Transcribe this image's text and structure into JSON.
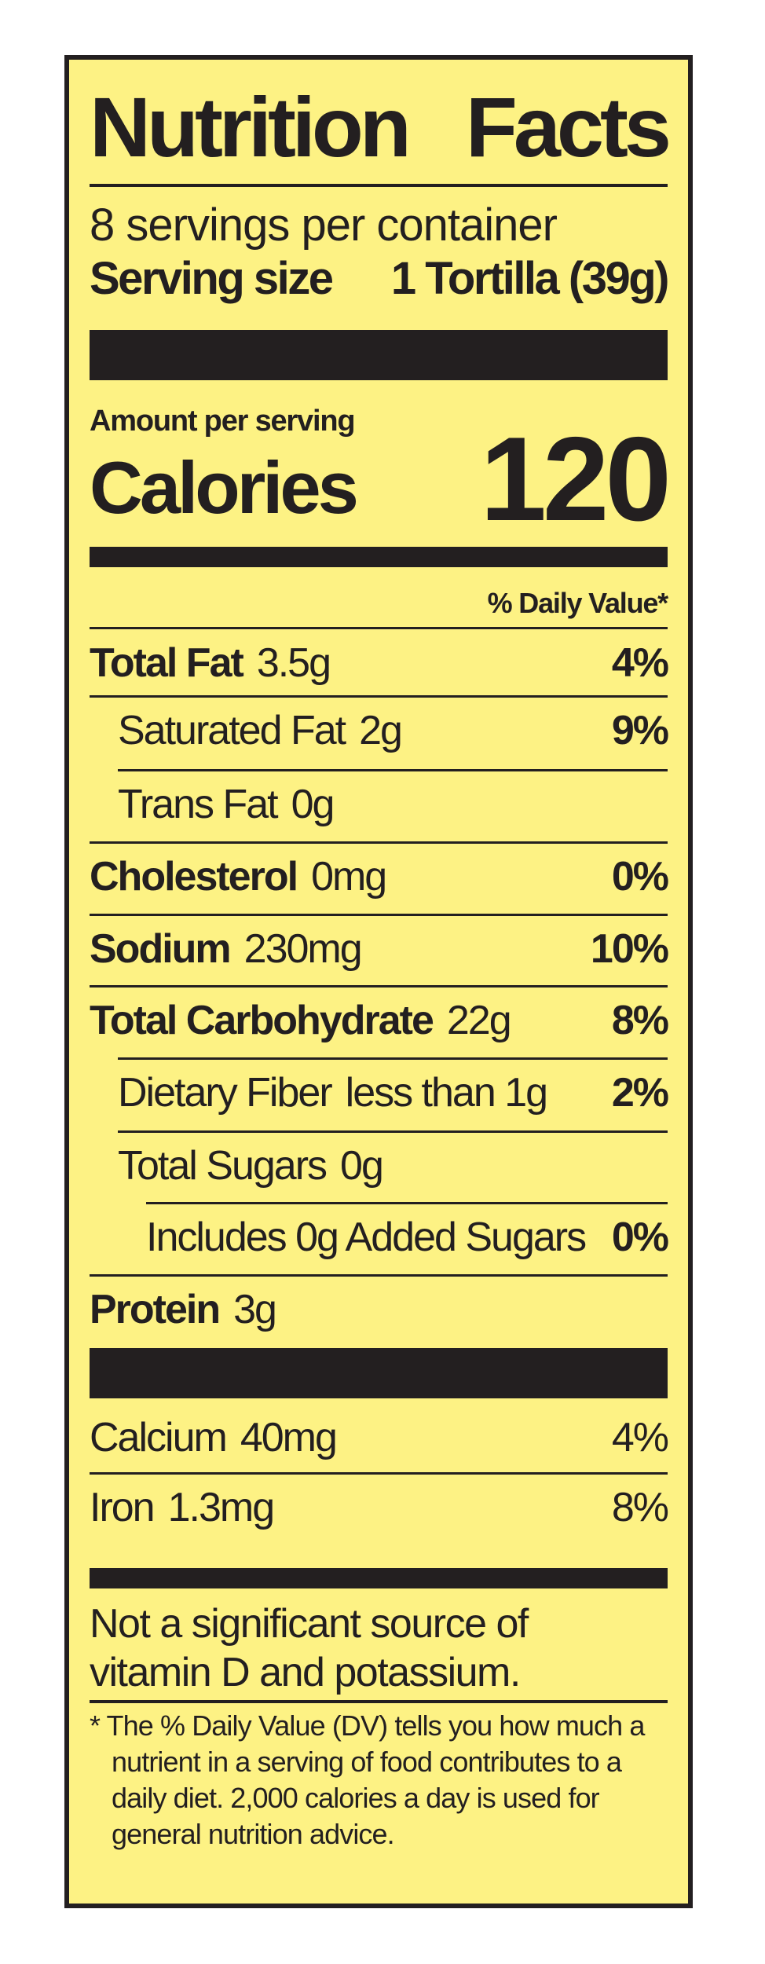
{
  "title": {
    "word1": "Nutrition",
    "word2": "Facts"
  },
  "servings_per_container": "8 servings per container",
  "serving_size": {
    "label": "Serving size",
    "value": "1 Tortilla (39g)"
  },
  "amount_per_serving": "Amount per serving",
  "calories": {
    "label": "Calories",
    "value": "120"
  },
  "daily_value_header": "% Daily Value*",
  "nutrients": [
    {
      "name": "Total Fat",
      "amount": "3.5g",
      "dv": "4%"
    },
    {
      "name": "Saturated Fat",
      "amount": "2g",
      "dv": "9%"
    },
    {
      "name": "Trans Fat",
      "amount": "0g",
      "dv": ""
    },
    {
      "name": "Cholesterol",
      "amount": "0mg",
      "dv": "0%"
    },
    {
      "name": "Sodium",
      "amount": "230mg",
      "dv": "10%"
    },
    {
      "name": "Total Carbohydrate",
      "amount": "22g",
      "dv": "8%"
    },
    {
      "name": "Dietary Fiber",
      "amount": "less than 1g",
      "dv": "2%"
    },
    {
      "name": "Total Sugars",
      "amount": "0g",
      "dv": ""
    },
    {
      "name": "Includes 0g Added Sugars",
      "amount": "",
      "dv": "0%"
    },
    {
      "name": "Protein",
      "amount": "3g",
      "dv": ""
    }
  ],
  "vitamins": [
    {
      "name": "Calcium",
      "amount": "40mg",
      "dv": "4%"
    },
    {
      "name": "Iron",
      "amount": "1.3mg",
      "dv": "8%"
    }
  ],
  "not_significant": {
    "line1": "Not a significant source of",
    "line2": "vitamin D and potassium."
  },
  "footnote": "* The % Daily Value (DV) tells you how much a nutrient in a serving of food contributes to a daily diet. 2,000 calories a day is used for general nutrition advice."
}
